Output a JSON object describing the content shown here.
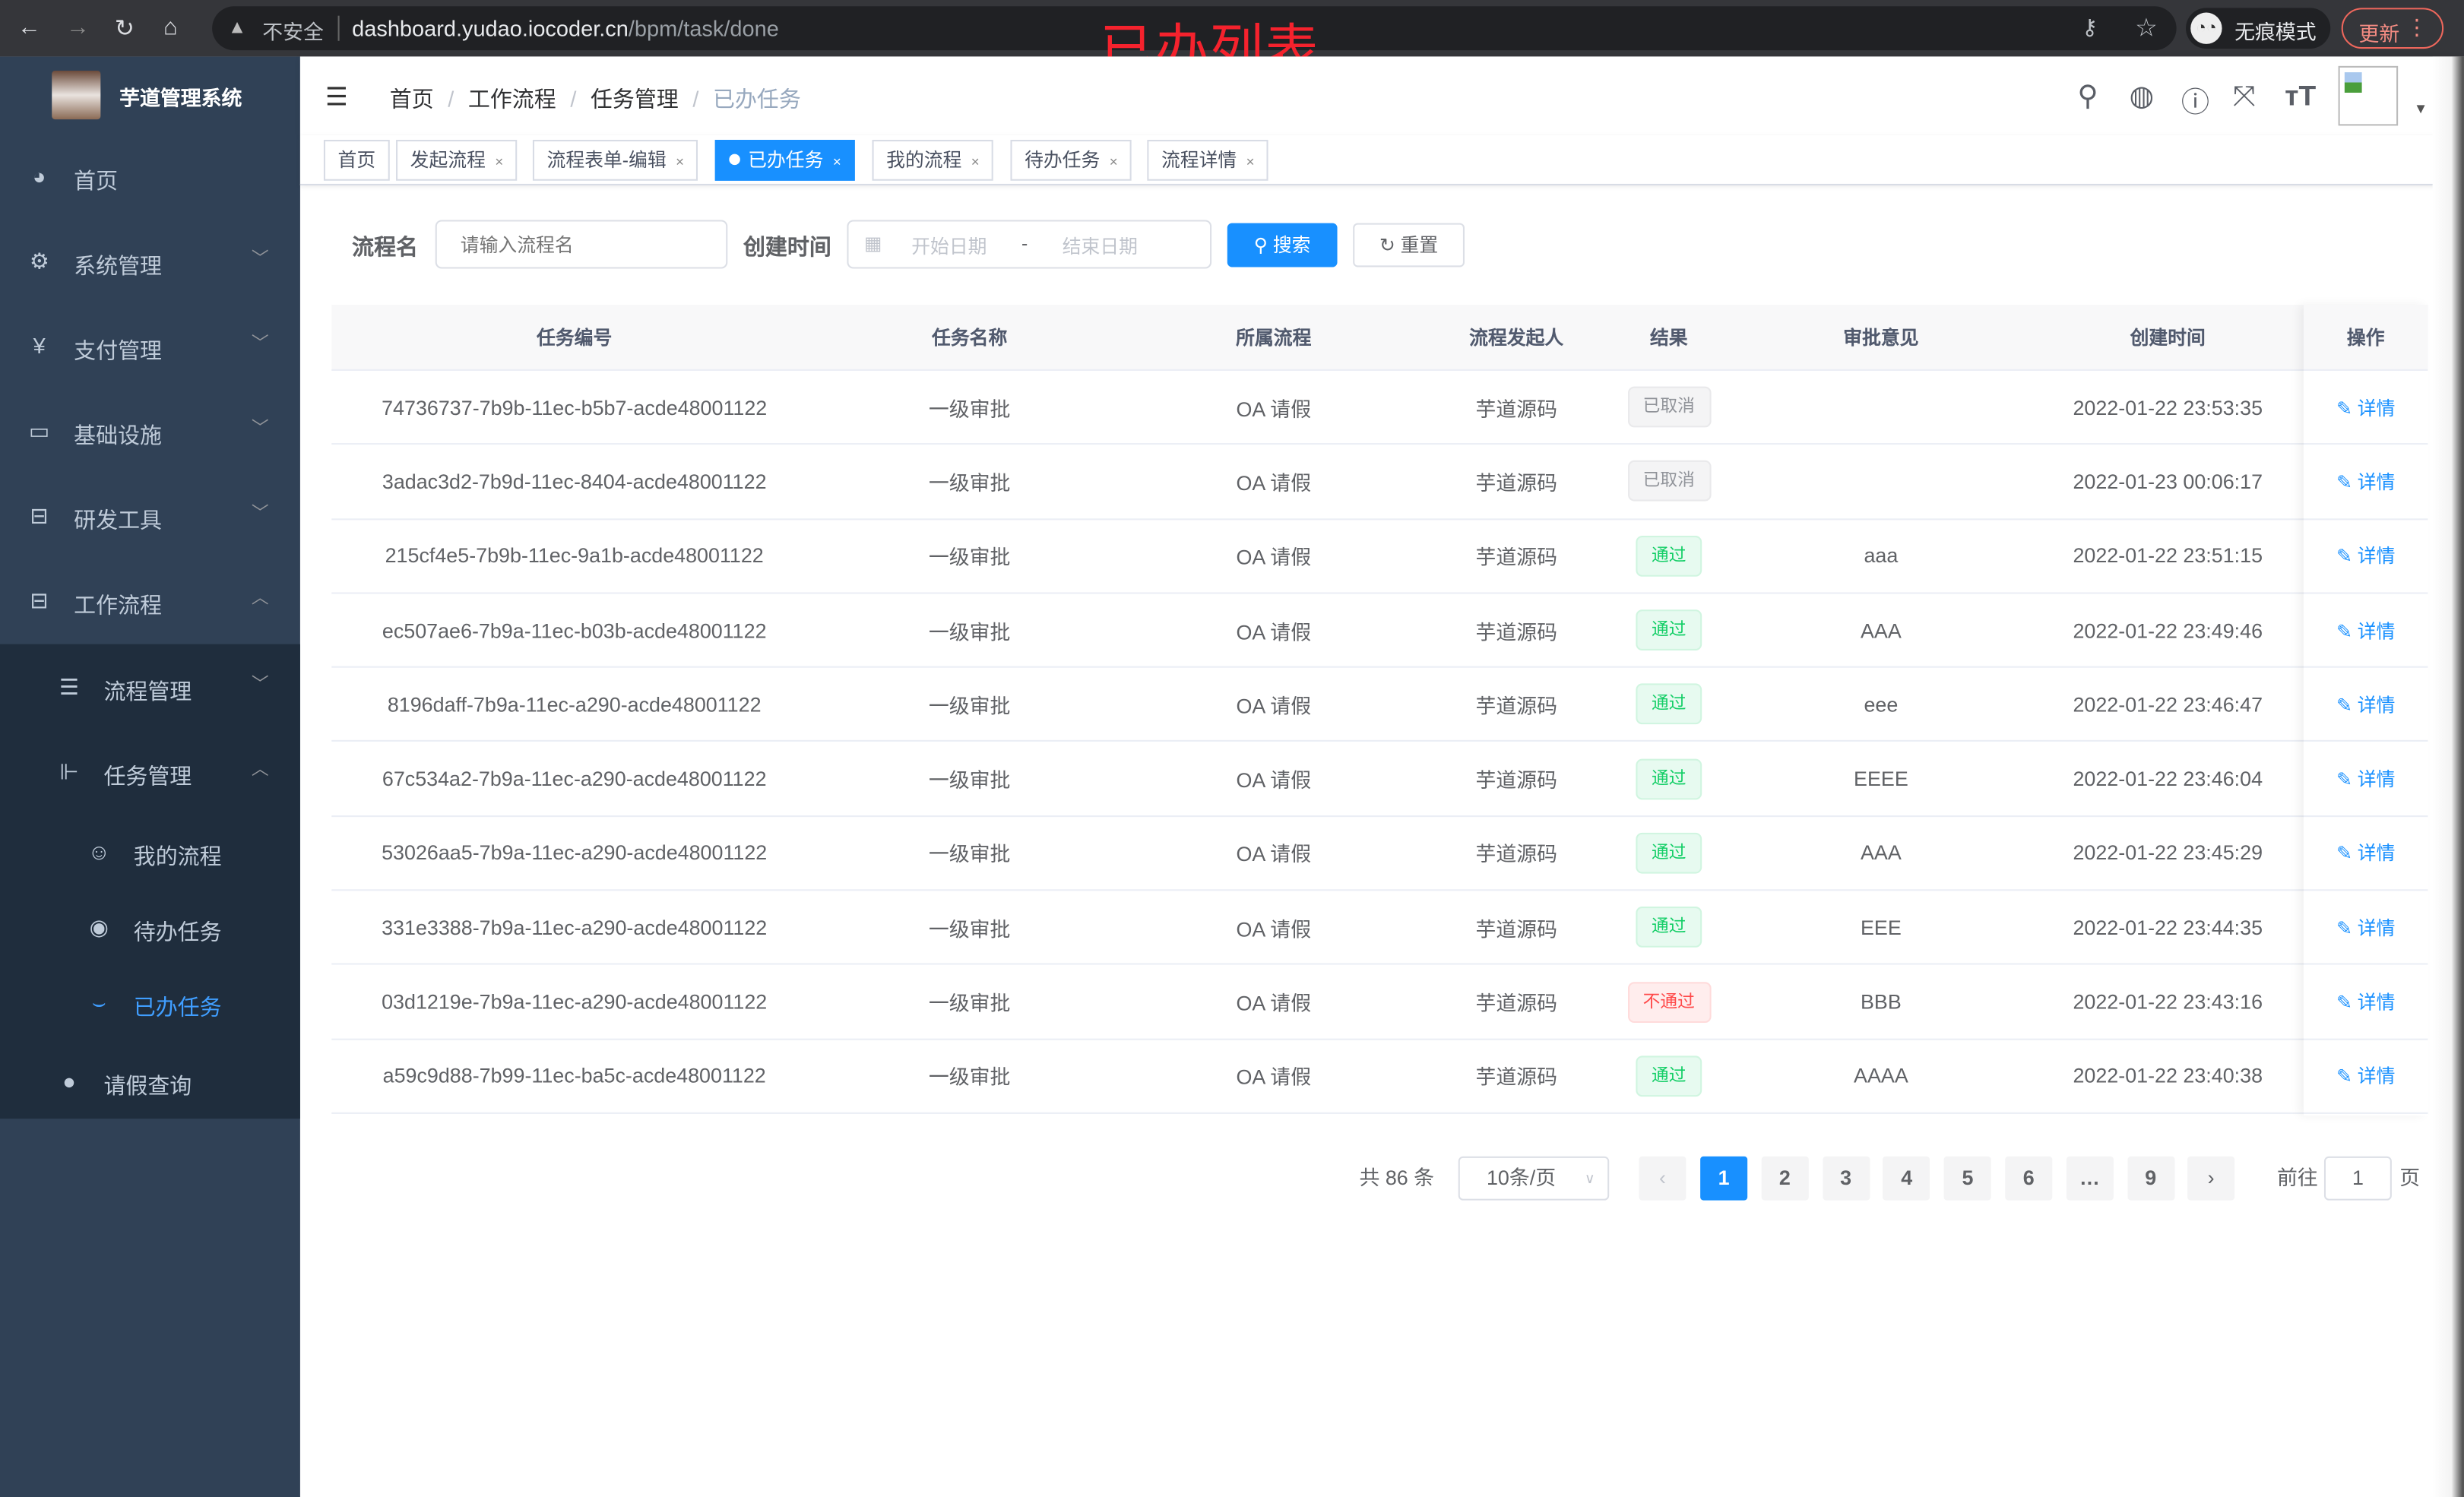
{
  "browser": {
    "insecure_label": "不安全",
    "url_host": "dashboard.yudao.iocoder.cn",
    "url_path": "/bpm/task/done",
    "incognito_label": "无痕模式",
    "update_label": "更新"
  },
  "annotation_title": "已办列表",
  "sidebar": {
    "brand": "芋道管理系统",
    "items": [
      {
        "label": "首页",
        "icon": "dashboard-icon"
      },
      {
        "label": "系统管理",
        "icon": "gear-icon"
      },
      {
        "label": "支付管理",
        "icon": "yen-icon"
      },
      {
        "label": "基础设施",
        "icon": "monitor-icon"
      },
      {
        "label": "研发工具",
        "icon": "toolbox-icon"
      },
      {
        "label": "工作流程",
        "icon": "toolbox-icon"
      }
    ],
    "sub_items": [
      {
        "label": "流程管理",
        "icon": "list-icon"
      },
      {
        "label": "任务管理",
        "icon": "tree-icon"
      }
    ],
    "task_items": [
      {
        "label": "我的流程",
        "icon": "people-icon"
      },
      {
        "label": "待办任务",
        "icon": "eye-icon"
      },
      {
        "label": "已办任务",
        "icon": "eye-closed-icon"
      }
    ],
    "leave_item": {
      "label": "请假查询",
      "icon": "user-icon"
    }
  },
  "breadcrumb": [
    "首页",
    "工作流程",
    "任务管理",
    "已办任务"
  ],
  "tags": [
    "首页",
    "发起流程",
    "流程表单-编辑",
    "已办任务",
    "我的流程",
    "待办任务",
    "流程详情"
  ],
  "filters": {
    "name_label": "流程名",
    "name_placeholder": "请输入流程名",
    "time_label": "创建时间",
    "start_placeholder": "开始日期",
    "range_sep": "-",
    "end_placeholder": "结束日期",
    "search_label": "搜索",
    "reset_label": "重置"
  },
  "table": {
    "columns": [
      "任务编号",
      "任务名称",
      "所属流程",
      "流程发起人",
      "结果",
      "审批意见",
      "创建时间",
      "操作"
    ],
    "action_label": "详情",
    "rows": [
      {
        "id": "74736737-7b9b-11ec-b5b7-acde48001122",
        "name": "一级审批",
        "process": "OA 请假",
        "starter": "芋道源码",
        "result": "已取消",
        "status": "cancelled",
        "comment": "",
        "time": "2022-01-22 23:53:35"
      },
      {
        "id": "3adac3d2-7b9d-11ec-8404-acde48001122",
        "name": "一级审批",
        "process": "OA 请假",
        "starter": "芋道源码",
        "result": "已取消",
        "status": "cancelled",
        "comment": "",
        "time": "2022-01-23 00:06:17"
      },
      {
        "id": "215cf4e5-7b9b-11ec-9a1b-acde48001122",
        "name": "一级审批",
        "process": "OA 请假",
        "starter": "芋道源码",
        "result": "通过",
        "status": "approved",
        "comment": "aaa",
        "time": "2022-01-22 23:51:15"
      },
      {
        "id": "ec507ae6-7b9a-11ec-b03b-acde48001122",
        "name": "一级审批",
        "process": "OA 请假",
        "starter": "芋道源码",
        "result": "通过",
        "status": "approved",
        "comment": "AAA",
        "time": "2022-01-22 23:49:46"
      },
      {
        "id": "8196daff-7b9a-11ec-a290-acde48001122",
        "name": "一级审批",
        "process": "OA 请假",
        "starter": "芋道源码",
        "result": "通过",
        "status": "approved",
        "comment": "eee",
        "time": "2022-01-22 23:46:47"
      },
      {
        "id": "67c534a2-7b9a-11ec-a290-acde48001122",
        "name": "一级审批",
        "process": "OA 请假",
        "starter": "芋道源码",
        "result": "通过",
        "status": "approved",
        "comment": "EEEE",
        "time": "2022-01-22 23:46:04"
      },
      {
        "id": "53026aa5-7b9a-11ec-a290-acde48001122",
        "name": "一级审批",
        "process": "OA 请假",
        "starter": "芋道源码",
        "result": "通过",
        "status": "approved",
        "comment": "AAA",
        "time": "2022-01-22 23:45:29"
      },
      {
        "id": "331e3388-7b9a-11ec-a290-acde48001122",
        "name": "一级审批",
        "process": "OA 请假",
        "starter": "芋道源码",
        "result": "通过",
        "status": "approved",
        "comment": "EEE",
        "time": "2022-01-22 23:44:35"
      },
      {
        "id": "03d1219e-7b9a-11ec-a290-acde48001122",
        "name": "一级审批",
        "process": "OA 请假",
        "starter": "芋道源码",
        "result": "不通过",
        "status": "rejected",
        "comment": "BBB",
        "time": "2022-01-22 23:43:16"
      },
      {
        "id": "a59c9d88-7b99-11ec-ba5c-acde48001122",
        "name": "一级审批",
        "process": "OA 请假",
        "starter": "芋道源码",
        "result": "通过",
        "status": "approved",
        "comment": "AAAA",
        "time": "2022-01-22 23:40:38"
      }
    ]
  },
  "status_colors": {
    "cancelled": {
      "fg": "#909399",
      "bg": "#f4f4f5",
      "border": "#e9e9eb"
    },
    "approved": {
      "fg": "#13ce66",
      "bg": "#e7faf0",
      "border": "#d0f5e0"
    },
    "rejected": {
      "fg": "#ff4949",
      "bg": "#ffeded",
      "border": "#ffdbdb"
    }
  },
  "pagination": {
    "total_text": "共 86 条",
    "page_size": "10条/页",
    "pages": [
      "1",
      "2",
      "3",
      "4",
      "5",
      "6",
      "…",
      "9"
    ],
    "current": "1",
    "goto_label": "前往",
    "goto_value": "1",
    "page_suffix": "页"
  },
  "accent_color": "#1890ff"
}
